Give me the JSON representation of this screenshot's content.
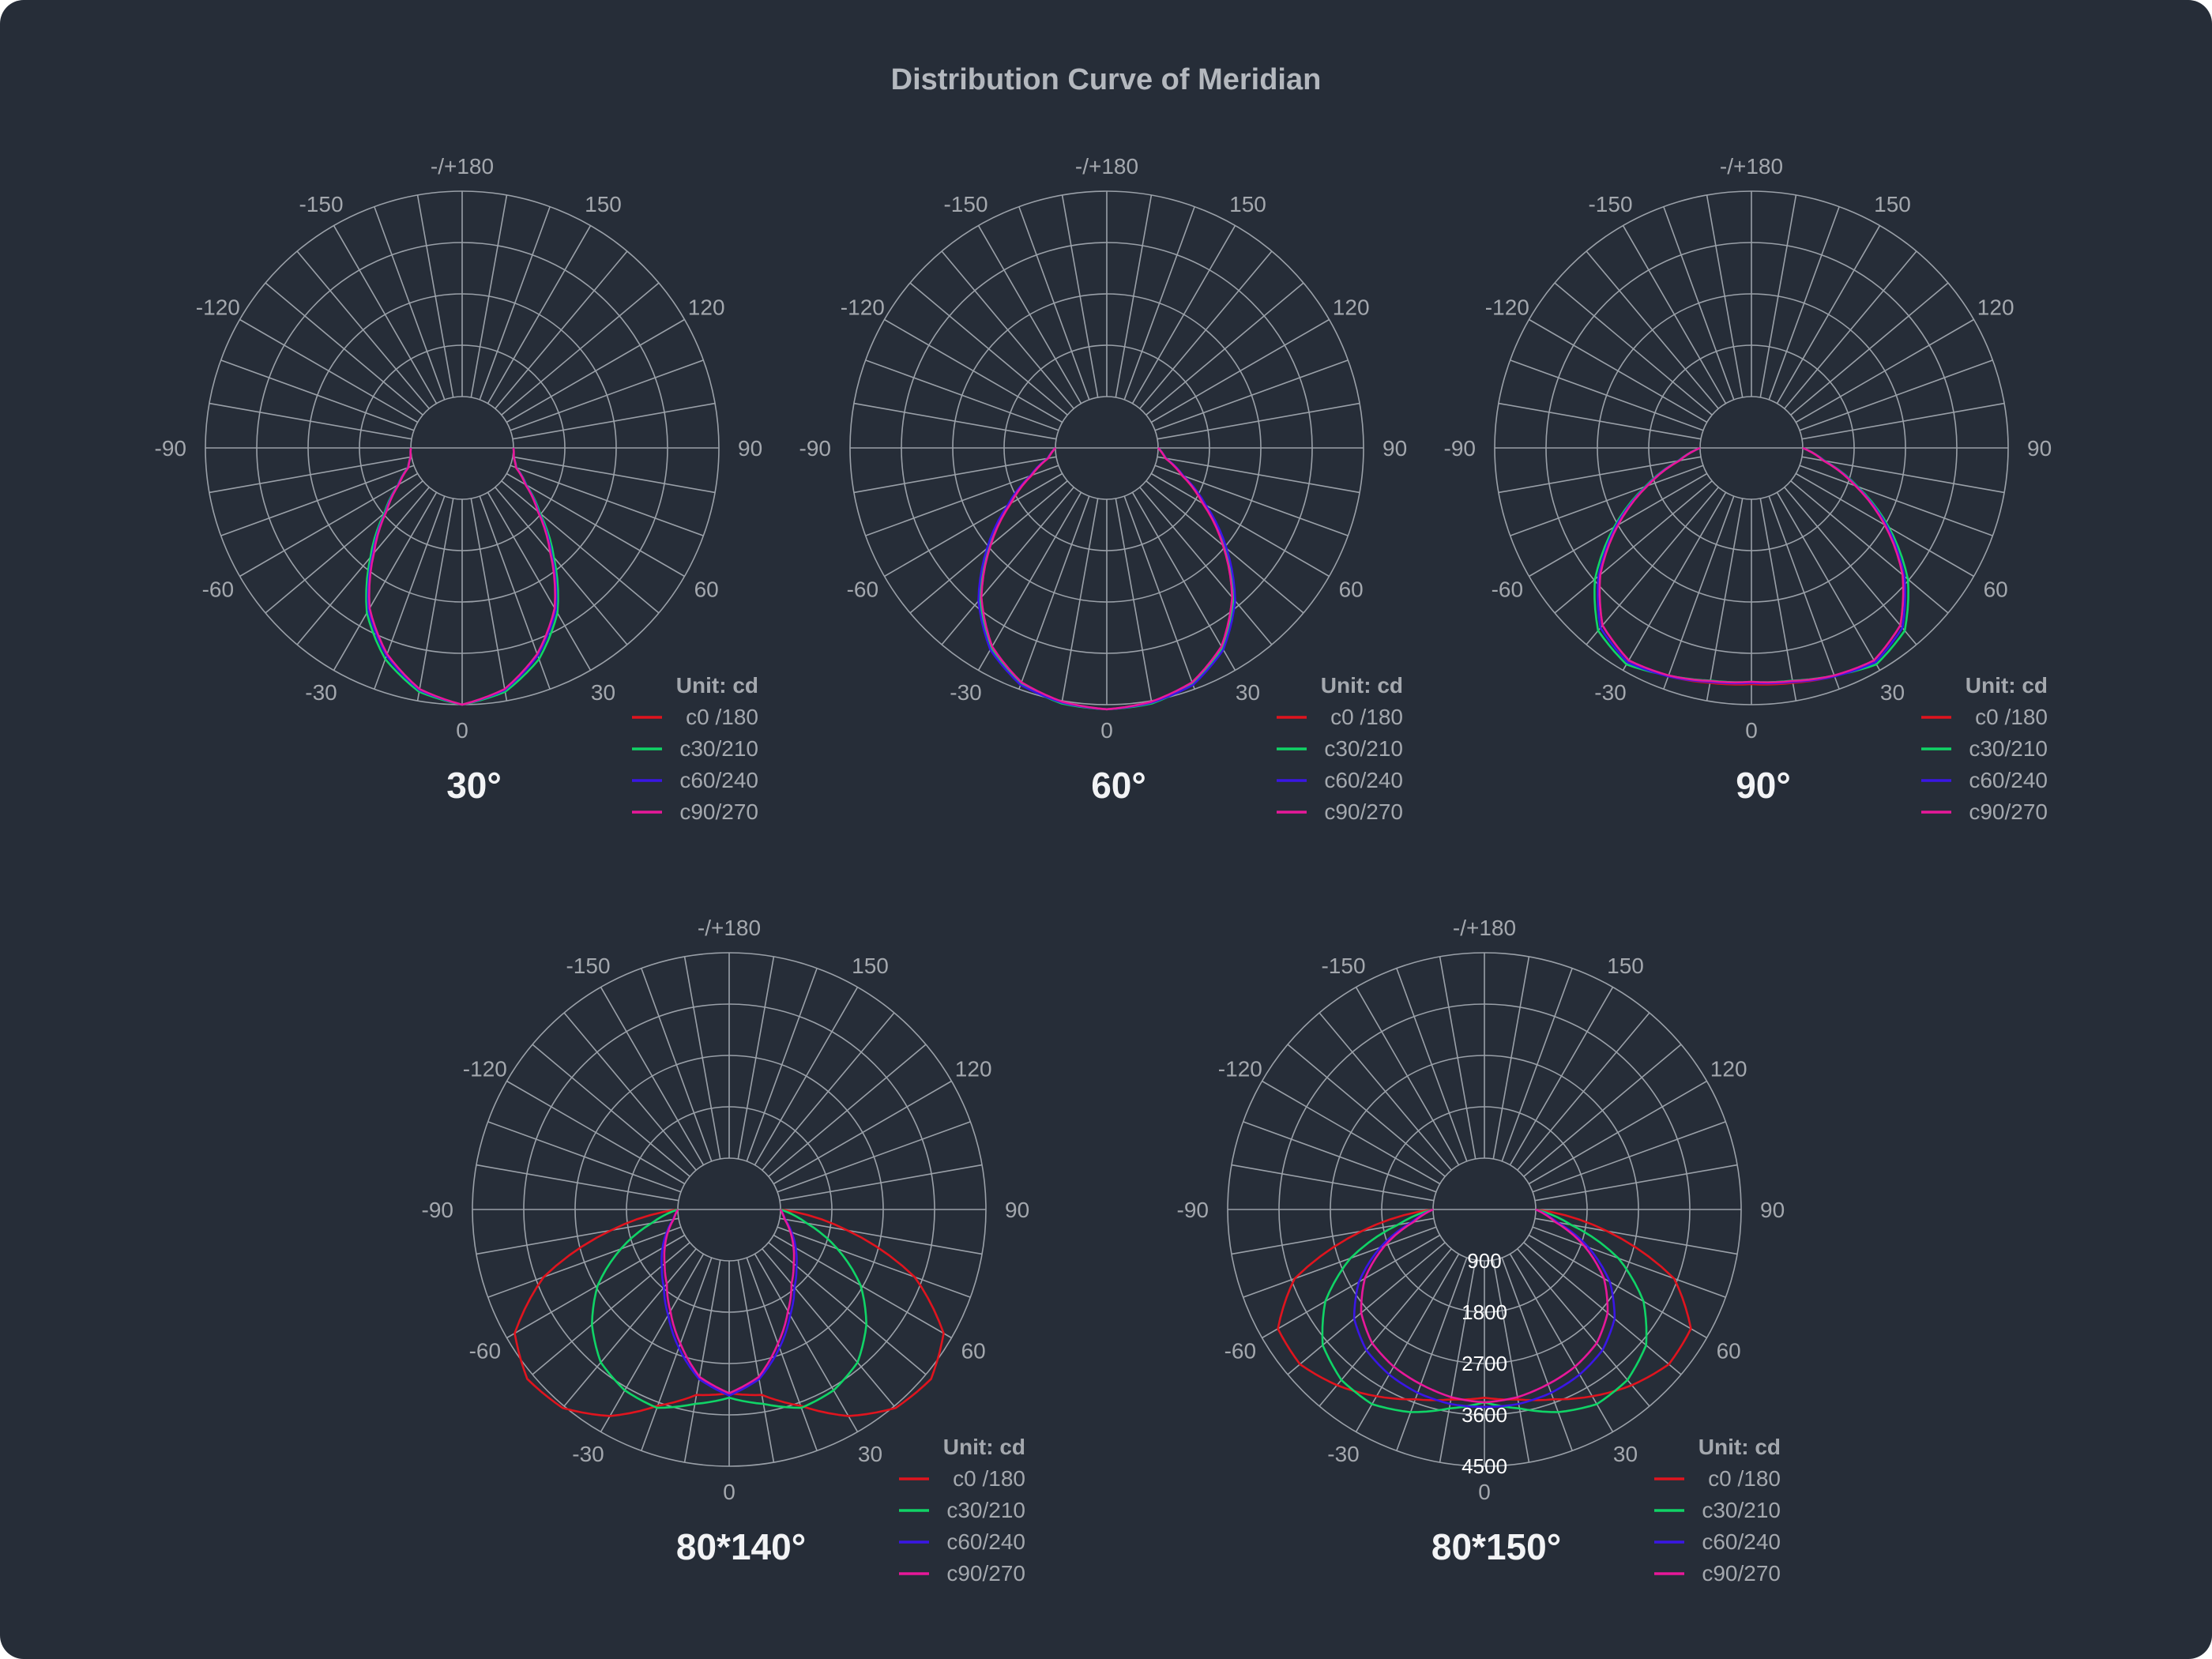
{
  "title": "Distribution Curve of Meridian",
  "angle_labels": [
    "-/+180",
    "-150",
    "150",
    "-120",
    "120",
    "-90",
    "90",
    "-60",
    "60",
    "-30",
    "30",
    "0"
  ],
  "unit_label": "Unit: cd",
  "series_colors": [
    "#e0141e",
    "#10d466",
    "#3a16e6",
    "#e8189a"
  ],
  "chart_data": [
    {
      "type": "polar",
      "title": "30°",
      "unit": "Unit: cd",
      "angle_unit": "degrees",
      "series": [
        {
          "name": "c0 /180",
          "color": "#e0141e",
          "angles": [
            0,
            10,
            20,
            30,
            40,
            50,
            60,
            70,
            80,
            90
          ],
          "values": [
            4500,
            4250,
            3700,
            2950,
            1900,
            1050,
            480,
            130,
            20,
            0
          ]
        },
        {
          "name": "c30/210",
          "color": "#10d466",
          "angles": [
            0,
            10,
            20,
            30,
            40,
            50,
            60,
            70,
            80,
            90
          ],
          "values": [
            4500,
            4300,
            3800,
            3050,
            2000,
            1100,
            500,
            140,
            20,
            0
          ]
        },
        {
          "name": "c60/240",
          "color": "#3a16e6",
          "angles": [
            0,
            10,
            20,
            30,
            40,
            50,
            60,
            70,
            80,
            90
          ],
          "values": [
            4500,
            4260,
            3720,
            2980,
            1920,
            1060,
            490,
            135,
            20,
            0
          ]
        },
        {
          "name": "c90/270",
          "color": "#e8189a",
          "angles": [
            0,
            10,
            20,
            30,
            40,
            50,
            60,
            70,
            80,
            90
          ],
          "values": [
            4500,
            4240,
            3680,
            2930,
            1880,
            1040,
            475,
            130,
            20,
            0
          ]
        }
      ]
    },
    {
      "type": "polar",
      "title": "60°",
      "unit": "Unit: cd",
      "angle_unit": "degrees",
      "series": [
        {
          "name": "c0 /180",
          "color": "#e0141e",
          "angles": [
            0,
            10,
            20,
            30,
            40,
            50,
            60,
            70,
            80,
            90
          ],
          "values": [
            4600,
            4550,
            4350,
            3900,
            3150,
            2200,
            1300,
            620,
            180,
            0
          ]
        },
        {
          "name": "c30/210",
          "color": "#10d466",
          "angles": [
            0,
            10,
            20,
            30,
            40,
            50,
            60,
            70,
            80,
            90
          ],
          "values": [
            4600,
            4560,
            4380,
            3950,
            3200,
            2250,
            1350,
            650,
            190,
            0
          ]
        },
        {
          "name": "c60/240",
          "color": "#3a16e6",
          "angles": [
            0,
            10,
            20,
            30,
            40,
            50,
            60,
            70,
            80,
            90
          ],
          "values": [
            4600,
            4540,
            4400,
            3980,
            3250,
            2300,
            1380,
            660,
            190,
            0
          ]
        },
        {
          "name": "c90/270",
          "color": "#e8189a",
          "angles": [
            0,
            10,
            20,
            30,
            40,
            50,
            60,
            70,
            80,
            90
          ],
          "values": [
            4600,
            4520,
            4340,
            3900,
            3150,
            2200,
            1310,
            630,
            180,
            0
          ]
        }
      ]
    },
    {
      "type": "polar",
      "title": "90°",
      "unit": "Unit: cd",
      "angle_unit": "degrees",
      "series": [
        {
          "name": "c0 /180",
          "color": "#e0141e",
          "angles": [
            0,
            10,
            20,
            30,
            40,
            50,
            60,
            70,
            80,
            90
          ],
          "values": [
            4050,
            4100,
            4200,
            4250,
            3950,
            3200,
            2250,
            1300,
            480,
            0
          ]
        },
        {
          "name": "c30/210",
          "color": "#10d466",
          "angles": [
            0,
            10,
            20,
            30,
            40,
            50,
            60,
            70,
            80,
            90
          ],
          "values": [
            4000,
            4050,
            4180,
            4350,
            4100,
            3350,
            2350,
            1350,
            500,
            0
          ]
        },
        {
          "name": "c60/240",
          "color": "#3a16e6",
          "angles": [
            0,
            10,
            20,
            30,
            40,
            50,
            60,
            70,
            80,
            90
          ],
          "values": [
            4020,
            4080,
            4200,
            4300,
            4020,
            3250,
            2300,
            1320,
            490,
            0
          ]
        },
        {
          "name": "c90/270",
          "color": "#e8189a",
          "angles": [
            0,
            10,
            20,
            30,
            40,
            50,
            60,
            70,
            80,
            90
          ],
          "values": [
            4000,
            4060,
            4180,
            4250,
            3950,
            3200,
            2250,
            1300,
            480,
            0
          ]
        }
      ]
    },
    {
      "type": "polar",
      "title": "80*140°",
      "unit": "Unit: cd",
      "angle_unit": "degrees",
      "series": [
        {
          "name": "c0 /180",
          "color": "#e0141e",
          "angles": [
            0,
            10,
            20,
            30,
            40,
            50,
            60,
            70,
            80,
            90
          ],
          "values": [
            2900,
            3000,
            3450,
            4100,
            4550,
            4650,
            4300,
            3200,
            1500,
            0
          ]
        },
        {
          "name": "c30/210",
          "color": "#10d466",
          "angles": [
            0,
            10,
            20,
            30,
            40,
            50,
            60,
            70,
            80,
            90
          ],
          "values": [
            3000,
            3200,
            3500,
            3450,
            3250,
            2800,
            2200,
            1400,
            600,
            0
          ]
        },
        {
          "name": "c60/240",
          "color": "#3a16e6",
          "angles": [
            0,
            10,
            20,
            30,
            40,
            50,
            60,
            70,
            80,
            90
          ],
          "values": [
            2950,
            2650,
            2100,
            1550,
            1100,
            800,
            560,
            330,
            120,
            0
          ]
        },
        {
          "name": "c90/270",
          "color": "#e8189a",
          "angles": [
            0,
            10,
            20,
            30,
            40,
            50,
            60,
            70,
            80,
            90
          ],
          "values": [
            2900,
            2600,
            2000,
            1450,
            1000,
            720,
            500,
            300,
            110,
            0
          ]
        }
      ]
    },
    {
      "type": "polar",
      "title": "80*150°",
      "unit": "Unit: cd",
      "angle_unit": "degrees",
      "radial_ticks": [
        900,
        1800,
        2700,
        3600,
        4500
      ],
      "series": [
        {
          "name": "c0 /180",
          "color": "#e0141e",
          "angles": [
            0,
            10,
            20,
            30,
            40,
            50,
            60,
            70,
            80,
            90
          ],
          "values": [
            3000,
            3100,
            3300,
            3600,
            3900,
            4150,
            4100,
            3300,
            1600,
            0
          ]
        },
        {
          "name": "c30/210",
          "color": "#10d466",
          "angles": [
            0,
            10,
            20,
            30,
            40,
            50,
            60,
            70,
            80,
            90
          ],
          "values": [
            3100,
            3300,
            3600,
            3800,
            3750,
            3500,
            2900,
            2000,
            800,
            0
          ]
        },
        {
          "name": "c60/240",
          "color": "#3a16e6",
          "angles": [
            0,
            10,
            20,
            30,
            40,
            50,
            60,
            70,
            80,
            90
          ],
          "values": [
            3200,
            3200,
            3150,
            3050,
            2900,
            2600,
            2050,
            1300,
            500,
            0
          ]
        },
        {
          "name": "c90/270",
          "color": "#e8189a",
          "angles": [
            0,
            10,
            20,
            30,
            40,
            50,
            60,
            70,
            80,
            90
          ],
          "values": [
            3100,
            3050,
            2950,
            2850,
            2700,
            2400,
            1900,
            1200,
            450,
            0
          ]
        }
      ]
    }
  ]
}
